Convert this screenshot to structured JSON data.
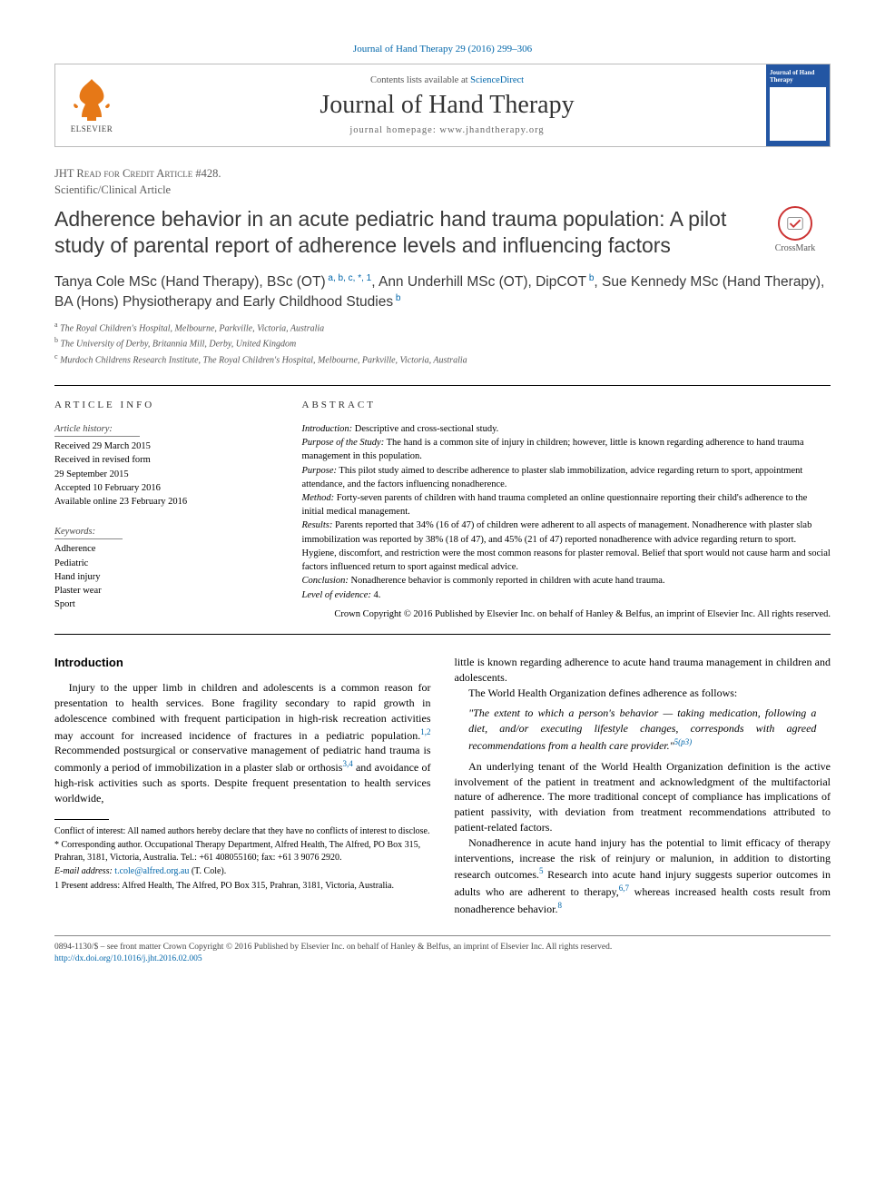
{
  "citation": "Journal of Hand Therapy 29 (2016) 299–306",
  "masthead": {
    "publisher": "ELSEVIER",
    "contents_prefix": "Contents lists available at ",
    "contents_link": "ScienceDirect",
    "journal_name": "Journal of Hand Therapy",
    "homepage_label": "journal homepage: ",
    "homepage_url": "www.jhandtherapy.org",
    "cover_title": "Journal of Hand Therapy"
  },
  "article_meta": {
    "credit_line": "JHT Read for Credit Article #428.",
    "article_type": "Scientific/Clinical Article",
    "crossmark": "CrossMark"
  },
  "title": "Adherence behavior in an acute pediatric hand trauma population: A pilot study of parental report of adherence levels and influencing factors",
  "authors_html": "Tanya Cole MSc (Hand Therapy), BSc (OT)<sup> a, b, c, *, 1</sup>, Ann Underhill MSc (OT), DipCOT<sup> b</sup>, Sue Kennedy MSc (Hand Therapy), BA (Hons) Physiotherapy and Early Childhood Studies<sup> b</sup>",
  "affiliations": [
    "a The Royal Children's Hospital, Melbourne, Parkville, Victoria, Australia",
    "b The University of Derby, Britannia Mill, Derby, United Kingdom",
    "c Murdoch Childrens Research Institute, The Royal Children's Hospital, Melbourne, Parkville, Victoria, Australia"
  ],
  "info": {
    "left_heading": "ARTICLE INFO",
    "history_label": "Article history:",
    "history": [
      "Received 29 March 2015",
      "Received in revised form",
      "29 September 2015",
      "Accepted 10 February 2016",
      "Available online 23 February 2016"
    ],
    "keywords_label": "Keywords:",
    "keywords": [
      "Adherence",
      "Pediatric",
      "Hand injury",
      "Plaster wear",
      "Sport"
    ],
    "right_heading": "ABSTRACT",
    "abstract": [
      {
        "label": "Introduction:",
        "text": " Descriptive and cross-sectional study."
      },
      {
        "label": "Purpose of the Study:",
        "text": " The hand is a common site of injury in children; however, little is known regarding adherence to hand trauma management in this population."
      },
      {
        "label": "Purpose:",
        "text": " This pilot study aimed to describe adherence to plaster slab immobilization, advice regarding return to sport, appointment attendance, and the factors influencing nonadherence."
      },
      {
        "label": "Method:",
        "text": " Forty-seven parents of children with hand trauma completed an online questionnaire reporting their child's adherence to the initial medical management."
      },
      {
        "label": "Results:",
        "text": " Parents reported that 34% (16 of 47) of children were adherent to all aspects of management. Nonadherence with plaster slab immobilization was reported by 38% (18 of 47), and 45% (21 of 47) reported nonadherence with advice regarding return to sport. Hygiene, discomfort, and restriction were the most common reasons for plaster removal. Belief that sport would not cause harm and social factors influenced return to sport against medical advice."
      },
      {
        "label": "Conclusion:",
        "text": " Nonadherence behavior is commonly reported in children with acute hand trauma."
      },
      {
        "label": "Level of evidence:",
        "text": " 4."
      }
    ],
    "copyright": "Crown Copyright © 2016 Published by Elsevier Inc. on behalf of Hanley & Belfus, an imprint of Elsevier Inc. All rights reserved."
  },
  "body": {
    "intro_heading": "Introduction",
    "p1": "Injury to the upper limb in children and adolescents is a common reason for presentation to health services. Bone fragility secondary to rapid growth in adolescence combined with frequent participation in high-risk recreation activities may account for increased incidence of fractures in a pediatric population.",
    "p1_ref": "1,2",
    "p1b": " Recommended postsurgical or conservative management of pediatric hand trauma is commonly a period of immobilization in a plaster slab or orthosis",
    "p1b_ref": "3,4",
    "p1c": " and avoidance of high-risk activities such as sports. Despite frequent presentation to health services worldwide,",
    "p2a": "little is known regarding adherence to acute hand trauma management in children and adolescents.",
    "p2b": "The World Health Organization defines adherence as follows:",
    "quote": "\"The extent to which a person's behavior — taking medication, following a diet, and/or executing lifestyle changes, corresponds with agreed recommendations from a health care provider.\"",
    "quote_ref": "5(p3)",
    "p3": "An underlying tenant of the World Health Organization definition is the active involvement of the patient in treatment and acknowledgment of the multifactorial nature of adherence. The more traditional concept of compliance has implications of patient passivity, with deviation from treatment recommendations attributed to patient-related factors.",
    "p4a": "Nonadherence in acute hand injury has the potential to limit efficacy of therapy interventions, increase the risk of reinjury or malunion, in addition to distorting research outcomes.",
    "p4a_ref": "5",
    "p4b": " Research into acute hand injury suggests superior outcomes in adults who are adherent to therapy,",
    "p4b_ref": "6,7",
    "p4c": " whereas increased health costs result from nonadherence behavior.",
    "p4c_ref": "8"
  },
  "footnotes": {
    "coi": "Conflict of interest: All named authors hereby declare that they have no conflicts of interest to disclose.",
    "corr": "* Corresponding author. Occupational Therapy Department, Alfred Health, The Alfred, PO Box 315, Prahran, 3181, Victoria, Australia. Tel.: +61 408055160; fax: +61 3 9076 2920.",
    "email_label": "E-mail address: ",
    "email": "t.cole@alfred.org.au",
    "email_suffix": " (T. Cole).",
    "present": "1 Present address: Alfred Health, The Alfred, PO Box 315, Prahran, 3181, Victoria, Australia."
  },
  "page_footer": {
    "line1": "0894-1130/$ – see front matter Crown Copyright © 2016 Published by Elsevier Inc. on behalf of Hanley & Belfus, an imprint of Elsevier Inc. All rights reserved.",
    "doi": "http://dx.doi.org/10.1016/j.jht.2016.02.005"
  },
  "colors": {
    "link": "#0066aa",
    "elsevier_orange": "#e67817",
    "cover_blue": "#2356a3",
    "crossmark_red": "#c33"
  }
}
